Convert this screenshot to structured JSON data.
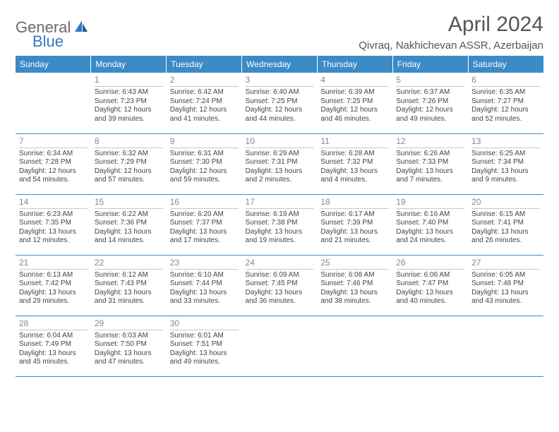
{
  "brand": {
    "general": "General",
    "blue": "Blue"
  },
  "header": {
    "title": "April 2024",
    "location": "Qivraq, Nakhichevan ASSR, Azerbaijan"
  },
  "colors": {
    "header_bg": "#3b8bc6",
    "header_text": "#ffffff",
    "border": "#3b8bc6",
    "daynum": "#888888",
    "body_text": "#444444",
    "logo_gray": "#6a6a6a",
    "logo_blue": "#2f7bbf"
  },
  "weekdays": [
    "Sunday",
    "Monday",
    "Tuesday",
    "Wednesday",
    "Thursday",
    "Friday",
    "Saturday"
  ],
  "weeks": [
    [
      null,
      {
        "d": "1",
        "sr": "Sunrise: 6:43 AM",
        "ss": "Sunset: 7:23 PM",
        "dl1": "Daylight: 12 hours",
        "dl2": "and 39 minutes."
      },
      {
        "d": "2",
        "sr": "Sunrise: 6:42 AM",
        "ss": "Sunset: 7:24 PM",
        "dl1": "Daylight: 12 hours",
        "dl2": "and 41 minutes."
      },
      {
        "d": "3",
        "sr": "Sunrise: 6:40 AM",
        "ss": "Sunset: 7:25 PM",
        "dl1": "Daylight: 12 hours",
        "dl2": "and 44 minutes."
      },
      {
        "d": "4",
        "sr": "Sunrise: 6:39 AM",
        "ss": "Sunset: 7:25 PM",
        "dl1": "Daylight: 12 hours",
        "dl2": "and 46 minutes."
      },
      {
        "d": "5",
        "sr": "Sunrise: 6:37 AM",
        "ss": "Sunset: 7:26 PM",
        "dl1": "Daylight: 12 hours",
        "dl2": "and 49 minutes."
      },
      {
        "d": "6",
        "sr": "Sunrise: 6:35 AM",
        "ss": "Sunset: 7:27 PM",
        "dl1": "Daylight: 12 hours",
        "dl2": "and 52 minutes."
      }
    ],
    [
      {
        "d": "7",
        "sr": "Sunrise: 6:34 AM",
        "ss": "Sunset: 7:28 PM",
        "dl1": "Daylight: 12 hours",
        "dl2": "and 54 minutes."
      },
      {
        "d": "8",
        "sr": "Sunrise: 6:32 AM",
        "ss": "Sunset: 7:29 PM",
        "dl1": "Daylight: 12 hours",
        "dl2": "and 57 minutes."
      },
      {
        "d": "9",
        "sr": "Sunrise: 6:31 AM",
        "ss": "Sunset: 7:30 PM",
        "dl1": "Daylight: 12 hours",
        "dl2": "and 59 minutes."
      },
      {
        "d": "10",
        "sr": "Sunrise: 6:29 AM",
        "ss": "Sunset: 7:31 PM",
        "dl1": "Daylight: 13 hours",
        "dl2": "and 2 minutes."
      },
      {
        "d": "11",
        "sr": "Sunrise: 6:28 AM",
        "ss": "Sunset: 7:32 PM",
        "dl1": "Daylight: 13 hours",
        "dl2": "and 4 minutes."
      },
      {
        "d": "12",
        "sr": "Sunrise: 6:26 AM",
        "ss": "Sunset: 7:33 PM",
        "dl1": "Daylight: 13 hours",
        "dl2": "and 7 minutes."
      },
      {
        "d": "13",
        "sr": "Sunrise: 6:25 AM",
        "ss": "Sunset: 7:34 PM",
        "dl1": "Daylight: 13 hours",
        "dl2": "and 9 minutes."
      }
    ],
    [
      {
        "d": "14",
        "sr": "Sunrise: 6:23 AM",
        "ss": "Sunset: 7:35 PM",
        "dl1": "Daylight: 13 hours",
        "dl2": "and 12 minutes."
      },
      {
        "d": "15",
        "sr": "Sunrise: 6:22 AM",
        "ss": "Sunset: 7:36 PM",
        "dl1": "Daylight: 13 hours",
        "dl2": "and 14 minutes."
      },
      {
        "d": "16",
        "sr": "Sunrise: 6:20 AM",
        "ss": "Sunset: 7:37 PM",
        "dl1": "Daylight: 13 hours",
        "dl2": "and 17 minutes."
      },
      {
        "d": "17",
        "sr": "Sunrise: 6:19 AM",
        "ss": "Sunset: 7:38 PM",
        "dl1": "Daylight: 13 hours",
        "dl2": "and 19 minutes."
      },
      {
        "d": "18",
        "sr": "Sunrise: 6:17 AM",
        "ss": "Sunset: 7:39 PM",
        "dl1": "Daylight: 13 hours",
        "dl2": "and 21 minutes."
      },
      {
        "d": "19",
        "sr": "Sunrise: 6:16 AM",
        "ss": "Sunset: 7:40 PM",
        "dl1": "Daylight: 13 hours",
        "dl2": "and 24 minutes."
      },
      {
        "d": "20",
        "sr": "Sunrise: 6:15 AM",
        "ss": "Sunset: 7:41 PM",
        "dl1": "Daylight: 13 hours",
        "dl2": "and 26 minutes."
      }
    ],
    [
      {
        "d": "21",
        "sr": "Sunrise: 6:13 AM",
        "ss": "Sunset: 7:42 PM",
        "dl1": "Daylight: 13 hours",
        "dl2": "and 29 minutes."
      },
      {
        "d": "22",
        "sr": "Sunrise: 6:12 AM",
        "ss": "Sunset: 7:43 PM",
        "dl1": "Daylight: 13 hours",
        "dl2": "and 31 minutes."
      },
      {
        "d": "23",
        "sr": "Sunrise: 6:10 AM",
        "ss": "Sunset: 7:44 PM",
        "dl1": "Daylight: 13 hours",
        "dl2": "and 33 minutes."
      },
      {
        "d": "24",
        "sr": "Sunrise: 6:09 AM",
        "ss": "Sunset: 7:45 PM",
        "dl1": "Daylight: 13 hours",
        "dl2": "and 36 minutes."
      },
      {
        "d": "25",
        "sr": "Sunrise: 6:08 AM",
        "ss": "Sunset: 7:46 PM",
        "dl1": "Daylight: 13 hours",
        "dl2": "and 38 minutes."
      },
      {
        "d": "26",
        "sr": "Sunrise: 6:06 AM",
        "ss": "Sunset: 7:47 PM",
        "dl1": "Daylight: 13 hours",
        "dl2": "and 40 minutes."
      },
      {
        "d": "27",
        "sr": "Sunrise: 6:05 AM",
        "ss": "Sunset: 7:48 PM",
        "dl1": "Daylight: 13 hours",
        "dl2": "and 43 minutes."
      }
    ],
    [
      {
        "d": "28",
        "sr": "Sunrise: 6:04 AM",
        "ss": "Sunset: 7:49 PM",
        "dl1": "Daylight: 13 hours",
        "dl2": "and 45 minutes."
      },
      {
        "d": "29",
        "sr": "Sunrise: 6:03 AM",
        "ss": "Sunset: 7:50 PM",
        "dl1": "Daylight: 13 hours",
        "dl2": "and 47 minutes."
      },
      {
        "d": "30",
        "sr": "Sunrise: 6:01 AM",
        "ss": "Sunset: 7:51 PM",
        "dl1": "Daylight: 13 hours",
        "dl2": "and 49 minutes."
      },
      null,
      null,
      null,
      null
    ]
  ]
}
